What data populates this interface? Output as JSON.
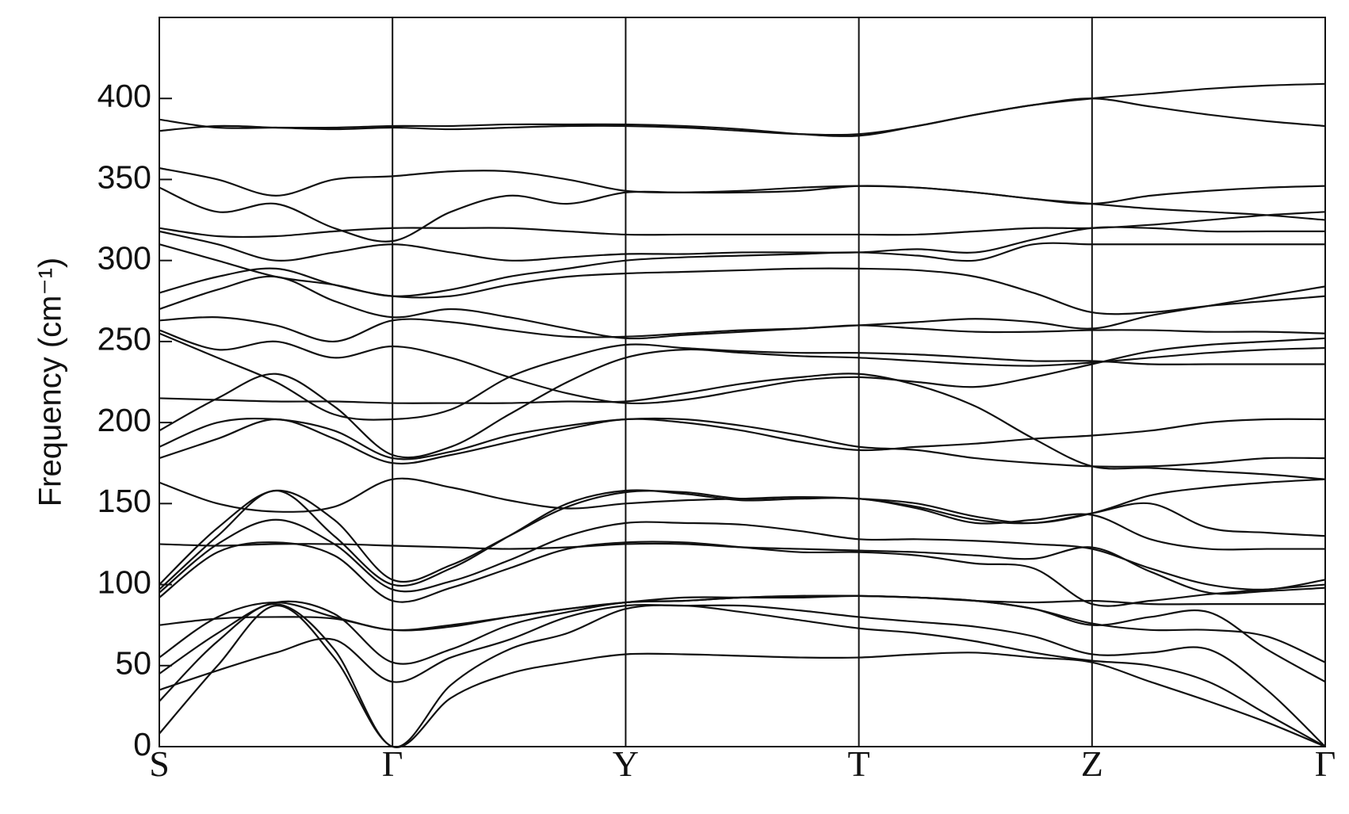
{
  "chart_data": {
    "type": "line",
    "y_label": "Frequency (cm⁻¹)",
    "x": [
      0,
      0.25,
      0.5,
      0.75,
      1,
      1.25,
      1.5,
      1.75,
      2,
      2.25,
      2.5,
      2.75,
      3,
      3.25,
      3.5,
      3.75,
      4,
      4.25,
      4.5,
      4.75,
      5
    ],
    "xlim": [
      0,
      5
    ],
    "xticks": [
      {
        "value": 0,
        "label": "S"
      },
      {
        "value": 1,
        "label": "Γ"
      },
      {
        "value": 2,
        "label": "Y"
      },
      {
        "value": 3,
        "label": "T"
      },
      {
        "value": 4,
        "label": "Z"
      },
      {
        "value": 5,
        "label": "Γ"
      }
    ],
    "ylim": [
      0,
      450
    ],
    "yticks": [
      0,
      50,
      100,
      150,
      200,
      250,
      300,
      350,
      400
    ],
    "grid": "x",
    "color": "#111111",
    "series": [
      {
        "values": [
          8,
          50,
          87,
          55,
          0,
          30,
          45,
          52,
          57,
          57,
          56,
          55,
          55,
          57,
          58,
          55,
          52,
          40,
          28,
          15,
          0
        ]
      },
      {
        "values": [
          28,
          65,
          88,
          60,
          0,
          38,
          60,
          70,
          85,
          87,
          83,
          78,
          73,
          70,
          65,
          58,
          53,
          50,
          40,
          20,
          0
        ]
      },
      {
        "values": [
          35,
          47,
          58,
          66,
          40,
          55,
          66,
          80,
          87,
          87,
          87,
          84,
          80,
          77,
          74,
          68,
          57,
          58,
          60,
          35,
          0
        ]
      },
      {
        "values": [
          45,
          70,
          89,
          82,
          52,
          60,
          75,
          83,
          89,
          90,
          92,
          93,
          93,
          92,
          90,
          85,
          75,
          80,
          83,
          60,
          40
        ]
      },
      {
        "values": [
          55,
          80,
          89,
          80,
          72,
          74,
          80,
          85,
          89,
          90,
          92,
          93,
          93,
          92,
          90,
          85,
          76,
          72,
          72,
          68,
          52
        ]
      },
      {
        "values": [
          75,
          79,
          80,
          79,
          72,
          75,
          80,
          85,
          89,
          92,
          92,
          92,
          93,
          92,
          90,
          89,
          90,
          88,
          88,
          88,
          88
        ]
      },
      {
        "values": [
          92,
          120,
          126,
          118,
          90,
          98,
          110,
          122,
          126,
          126,
          123,
          120,
          120,
          118,
          113,
          110,
          88,
          90,
          94,
          97,
          100
        ]
      },
      {
        "values": [
          95,
          125,
          140,
          125,
          97,
          102,
          115,
          130,
          138,
          138,
          137,
          133,
          128,
          128,
          127,
          125,
          122,
          110,
          100,
          97,
          103
        ]
      },
      {
        "values": [
          97,
          130,
          158,
          130,
          100,
          110,
          130,
          150,
          158,
          156,
          152,
          153,
          153,
          147,
          138,
          140,
          143,
          128,
          122,
          122,
          122
        ]
      },
      {
        "values": [
          100,
          135,
          158,
          140,
          103,
          112,
          130,
          148,
          157,
          157,
          153,
          154,
          153,
          150,
          142,
          138,
          144,
          155,
          160,
          163,
          165
        ]
      },
      {
        "values": [
          125,
          124,
          125,
          125,
          124,
          123,
          122,
          123,
          125,
          125,
          123,
          122,
          121,
          120,
          118,
          116,
          123,
          108,
          95,
          96,
          98
        ]
      },
      {
        "values": [
          163,
          150,
          145,
          148,
          165,
          160,
          152,
          147,
          150,
          152,
          153,
          154,
          153,
          148,
          140,
          138,
          144,
          150,
          135,
          132,
          130
        ]
      },
      {
        "values": [
          178,
          190,
          202,
          190,
          175,
          180,
          188,
          196,
          202,
          200,
          195,
          188,
          183,
          185,
          187,
          190,
          192,
          195,
          200,
          202,
          202
        ]
      },
      {
        "values": [
          185,
          200,
          202,
          195,
          178,
          182,
          192,
          198,
          202,
          202,
          198,
          192,
          185,
          183,
          178,
          175,
          173,
          173,
          175,
          178,
          178
        ]
      },
      {
        "values": [
          195,
          215,
          230,
          210,
          180,
          185,
          205,
          225,
          240,
          245,
          243,
          241,
          240,
          238,
          236,
          235,
          237,
          240,
          243,
          245,
          246
        ]
      },
      {
        "values": [
          215,
          214,
          213,
          213,
          212,
          212,
          212,
          213,
          213,
          218,
          224,
          228,
          230,
          223,
          210,
          190,
          173,
          172,
          170,
          168,
          165
        ]
      },
      {
        "values": [
          255,
          240,
          225,
          205,
          202,
          208,
          228,
          240,
          248,
          246,
          244,
          243,
          243,
          242,
          240,
          238,
          238,
          236,
          236,
          236,
          236
        ]
      },
      {
        "values": [
          257,
          245,
          250,
          240,
          247,
          240,
          228,
          218,
          212,
          214,
          220,
          226,
          228,
          225,
          222,
          228,
          236,
          244,
          248,
          250,
          252
        ]
      },
      {
        "values": [
          263,
          265,
          260,
          250,
          263,
          262,
          257,
          253,
          253,
          255,
          257,
          258,
          260,
          258,
          256,
          256,
          257,
          257,
          256,
          256,
          255
        ]
      },
      {
        "values": [
          270,
          282,
          290,
          275,
          265,
          270,
          265,
          258,
          252,
          254,
          256,
          258,
          260,
          262,
          264,
          262,
          258,
          266,
          272,
          278,
          284
        ]
      },
      {
        "values": [
          280,
          290,
          295,
          285,
          278,
          278,
          285,
          290,
          292,
          293,
          294,
          295,
          295,
          294,
          290,
          280,
          268,
          268,
          272,
          275,
          278
        ]
      },
      {
        "values": [
          310,
          300,
          290,
          285,
          278,
          282,
          290,
          295,
          300,
          302,
          303,
          304,
          305,
          303,
          300,
          310,
          310,
          310,
          310,
          310,
          310
        ]
      },
      {
        "values": [
          318,
          310,
          300,
          305,
          310,
          305,
          300,
          302,
          304,
          304,
          305,
          305,
          305,
          307,
          305,
          313,
          320,
          320,
          318,
          318,
          318
        ]
      },
      {
        "values": [
          320,
          315,
          315,
          318,
          320,
          320,
          320,
          318,
          316,
          316,
          316,
          316,
          316,
          316,
          318,
          320,
          320,
          322,
          325,
          328,
          330
        ]
      },
      {
        "values": [
          345,
          330,
          335,
          320,
          312,
          330,
          340,
          335,
          342,
          342,
          343,
          345,
          346,
          345,
          342,
          338,
          335,
          340,
          343,
          345,
          346
        ]
      },
      {
        "values": [
          357,
          350,
          340,
          350,
          352,
          355,
          355,
          350,
          343,
          342,
          342,
          343,
          346,
          345,
          342,
          338,
          335,
          332,
          330,
          328,
          325
        ]
      },
      {
        "values": [
          380,
          383,
          382,
          381,
          382,
          381,
          382,
          383,
          383,
          382,
          380,
          378,
          378,
          383,
          390,
          396,
          400,
          403,
          406,
          408,
          409
        ]
      },
      {
        "values": [
          387,
          382,
          382,
          382,
          383,
          383,
          384,
          384,
          384,
          383,
          381,
          378,
          377,
          383,
          390,
          396,
          400,
          395,
          390,
          386,
          383
        ]
      }
    ]
  }
}
